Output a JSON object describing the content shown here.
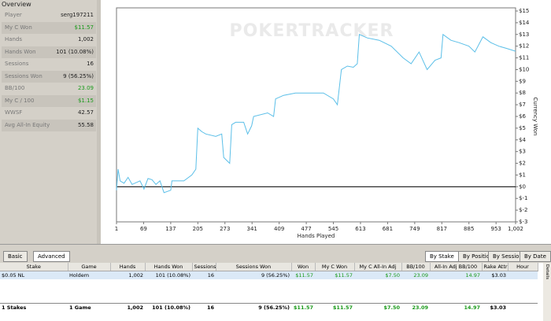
{
  "overview": {
    "title": "Overview",
    "rows": [
      [
        "Player",
        "serg197211"
      ],
      [
        "My C Won",
        "$11.57"
      ],
      [
        "Hands",
        "1,002"
      ],
      [
        "Hands Won",
        "101 (10.08%)"
      ],
      [
        "Sessions",
        "16"
      ],
      [
        "Sessions Won",
        "9 (56.25%)"
      ],
      [
        "BB/100",
        "23.09"
      ],
      [
        "My C / 100",
        "$1.15"
      ],
      [
        "WWSF",
        "42.57"
      ],
      [
        "Avg All-In Equity",
        "55.58"
      ]
    ]
  },
  "chart_data": {
    "type": "line",
    "watermark": "POKERTRACKER",
    "xlabel": "Hands Played",
    "ylabel": "Currency Won",
    "x": [
      1,
      5,
      10,
      20,
      30,
      40,
      60,
      70,
      80,
      90,
      100,
      110,
      120,
      137,
      140,
      170,
      190,
      200,
      205,
      215,
      225,
      250,
      265,
      270,
      285,
      290,
      300,
      320,
      330,
      340,
      345,
      380,
      395,
      400,
      420,
      450,
      480,
      520,
      545,
      555,
      565,
      580,
      595,
      605,
      610,
      630,
      660,
      690,
      720,
      740,
      760,
      780,
      800,
      815,
      820,
      840,
      860,
      885,
      900,
      920,
      940,
      960,
      980,
      1002
    ],
    "values": [
      -0.3,
      1.5,
      0.5,
      0.3,
      0.8,
      0.2,
      0.5,
      -0.2,
      0.7,
      0.6,
      0.2,
      0.5,
      -0.5,
      -0.3,
      0.5,
      0.5,
      1.0,
      1.5,
      5.0,
      4.7,
      4.5,
      4.3,
      4.5,
      2.5,
      2.0,
      5.3,
      5.5,
      5.5,
      4.5,
      5.2,
      6.0,
      6.3,
      6.0,
      7.5,
      7.8,
      8.0,
      8.0,
      8.0,
      7.5,
      7.0,
      10.0,
      10.3,
      10.2,
      10.5,
      13.0,
      12.7,
      12.5,
      12.0,
      11.0,
      10.5,
      11.5,
      10.0,
      10.8,
      11.0,
      13.0,
      12.5,
      12.3,
      12.0,
      11.5,
      12.8,
      12.3,
      12.0,
      11.8,
      11.57
    ],
    "color": "#5bbfe8",
    "xlim": [
      1,
      1002
    ],
    "ylim": [
      -3,
      15
    ],
    "xticks": [
      1,
      69,
      137,
      205,
      273,
      341,
      409,
      477,
      545,
      613,
      681,
      749,
      817,
      885,
      953,
      {
        "value": 1002,
        "label": "1,002"
      }
    ],
    "yticks": [
      {
        "value": -3,
        "label": "$-3"
      },
      {
        "value": -2,
        "label": "$-2"
      },
      {
        "value": -1,
        "label": "$-1"
      },
      {
        "value": 0,
        "label": "$0"
      },
      {
        "value": 1,
        "label": "$1"
      },
      {
        "value": 2,
        "label": "$2"
      },
      {
        "value": 3,
        "label": "$3"
      },
      {
        "value": 4,
        "label": "$4"
      },
      {
        "value": 5,
        "label": "$5"
      },
      {
        "value": 6,
        "label": "$6"
      },
      {
        "value": 7,
        "label": "$7"
      },
      {
        "value": 8,
        "label": "$8"
      },
      {
        "value": 9,
        "label": "$9"
      },
      {
        "value": 10,
        "label": "$10"
      },
      {
        "value": 11,
        "label": "$11"
      },
      {
        "value": 12,
        "label": "$12"
      },
      {
        "value": 13,
        "label": "$13"
      },
      {
        "value": 14,
        "label": "$14"
      },
      {
        "value": 15,
        "label": "$15"
      }
    ]
  },
  "toolbar": {
    "buttons": [
      "Basic",
      "Advanced"
    ],
    "tabs": [
      "By Stake",
      "By Position",
      "By Session",
      "By Date"
    ]
  },
  "table": {
    "headers": [
      "Stake",
      "Game",
      "Hands",
      "Hands Won",
      "Sessions",
      "Sessions Won",
      "Won",
      "My C Won",
      "My C All-In Adj",
      "BB/100",
      "All-In Adj BB/100",
      "Rake Attrib",
      "Hour"
    ],
    "rows": [
      [
        "$0.05 NL",
        "Holdem",
        "1,002",
        "101 (10.08%)",
        "16",
        "9 (56.25%)",
        "$11.57",
        "$11.57",
        "$7.50",
        "23.09",
        "14.97",
        "$3.03",
        ""
      ]
    ],
    "totals": [
      "1 Stakes",
      "1 Game",
      "1,002",
      "101 (10.08%)",
      "16",
      "9 (56.25%)",
      "$11.57",
      "$11.57",
      "$7.50",
      "23.09",
      "14.97",
      "$3.03",
      ""
    ],
    "side_note": "Double-Click a Row For Details"
  }
}
